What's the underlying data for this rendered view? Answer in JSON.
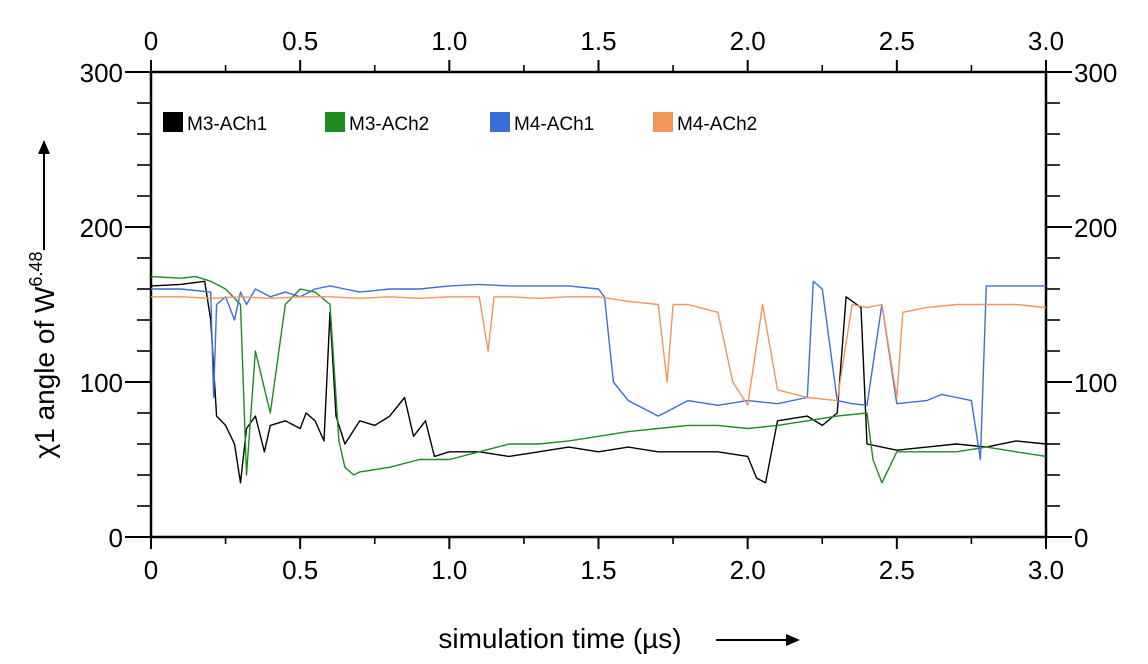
{
  "chart_data": {
    "type": "line",
    "xlabel": "simulation time (µs)",
    "ylabel": "χ1 angle of W",
    "ylabel_sup": "6.48",
    "xlim": [
      0,
      3.0
    ],
    "ylim": [
      0,
      300
    ],
    "x_ticks": [
      "0",
      "0.5",
      "1.0",
      "1.5",
      "2.0",
      "2.5",
      "3.0"
    ],
    "x_tick_values": [
      0,
      0.5,
      1.0,
      1.5,
      2.0,
      2.5,
      3.0
    ],
    "y_ticks": [
      "0",
      "100",
      "200",
      "300"
    ],
    "y_tick_values": [
      0,
      100,
      200,
      300
    ],
    "legend_position": "top-left",
    "series": [
      {
        "name": "M3-ACh1",
        "color": "#000000",
        "x": [
          0,
          0.1,
          0.18,
          0.2,
          0.22,
          0.25,
          0.28,
          0.3,
          0.32,
          0.35,
          0.38,
          0.4,
          0.45,
          0.5,
          0.52,
          0.55,
          0.58,
          0.6,
          0.62,
          0.65,
          0.7,
          0.75,
          0.8,
          0.85,
          0.88,
          0.92,
          0.95,
          1.0,
          1.1,
          1.2,
          1.3,
          1.4,
          1.5,
          1.6,
          1.7,
          1.8,
          1.9,
          2.0,
          2.03,
          2.06,
          2.1,
          2.2,
          2.25,
          2.3,
          2.33,
          2.38,
          2.4,
          2.45,
          2.5,
          2.6,
          2.7,
          2.8,
          2.9,
          3.0
        ],
        "y": [
          162,
          163,
          165,
          140,
          78,
          72,
          60,
          35,
          70,
          78,
          55,
          72,
          75,
          70,
          80,
          75,
          62,
          145,
          78,
          60,
          75,
          72,
          78,
          90,
          65,
          75,
          52,
          55,
          55,
          52,
          55,
          58,
          55,
          58,
          55,
          55,
          55,
          52,
          38,
          35,
          75,
          78,
          72,
          80,
          155,
          148,
          60,
          58,
          56,
          58,
          60,
          58,
          62,
          60
        ]
      },
      {
        "name": "M3-ACh2",
        "color": "#1e8c1e",
        "x": [
          0,
          0.1,
          0.15,
          0.2,
          0.25,
          0.3,
          0.32,
          0.35,
          0.4,
          0.45,
          0.5,
          0.55,
          0.6,
          0.63,
          0.65,
          0.68,
          0.7,
          0.8,
          0.9,
          1.0,
          1.1,
          1.2,
          1.3,
          1.4,
          1.5,
          1.6,
          1.7,
          1.8,
          1.9,
          2.0,
          2.1,
          2.2,
          2.3,
          2.4,
          2.42,
          2.45,
          2.5,
          2.6,
          2.7,
          2.8,
          2.9,
          3.0
        ],
        "y": [
          168,
          167,
          168,
          165,
          160,
          150,
          40,
          120,
          80,
          150,
          160,
          158,
          150,
          62,
          45,
          40,
          42,
          45,
          50,
          50,
          55,
          60,
          60,
          62,
          65,
          68,
          70,
          72,
          72,
          70,
          72,
          75,
          78,
          80,
          50,
          35,
          55,
          55,
          55,
          58,
          55,
          52
        ]
      },
      {
        "name": "M4-ACh1",
        "color": "#3a6fd8",
        "x": [
          0,
          0.1,
          0.2,
          0.21,
          0.22,
          0.25,
          0.28,
          0.3,
          0.32,
          0.35,
          0.4,
          0.45,
          0.5,
          0.55,
          0.6,
          0.65,
          0.7,
          0.8,
          0.9,
          1.0,
          1.1,
          1.2,
          1.3,
          1.4,
          1.5,
          1.52,
          1.55,
          1.6,
          1.7,
          1.8,
          1.9,
          2.0,
          2.1,
          2.2,
          2.22,
          2.25,
          2.3,
          2.35,
          2.4,
          2.45,
          2.5,
          2.6,
          2.65,
          2.7,
          2.75,
          2.78,
          2.8,
          2.9,
          3.0
        ],
        "y": [
          160,
          160,
          158,
          90,
          150,
          155,
          140,
          158,
          150,
          160,
          155,
          158,
          155,
          160,
          162,
          160,
          158,
          160,
          160,
          162,
          163,
          162,
          162,
          162,
          160,
          155,
          100,
          88,
          78,
          88,
          85,
          88,
          86,
          90,
          165,
          160,
          88,
          86,
          85,
          150,
          86,
          88,
          92,
          90,
          88,
          50,
          162,
          162,
          162
        ]
      },
      {
        "name": "M4-ACh2",
        "color": "#f2955a",
        "x": [
          0,
          0.1,
          0.2,
          0.3,
          0.4,
          0.5,
          0.6,
          0.7,
          0.8,
          0.9,
          1.0,
          1.1,
          1.13,
          1.15,
          1.2,
          1.3,
          1.4,
          1.5,
          1.6,
          1.7,
          1.73,
          1.75,
          1.8,
          1.9,
          1.95,
          2.0,
          2.05,
          2.1,
          2.2,
          2.3,
          2.35,
          2.4,
          2.45,
          2.5,
          2.52,
          2.6,
          2.7,
          2.8,
          2.9,
          3.0
        ],
        "y": [
          155,
          155,
          154,
          155,
          154,
          155,
          155,
          154,
          155,
          154,
          155,
          155,
          120,
          155,
          155,
          154,
          155,
          155,
          152,
          150,
          100,
          150,
          150,
          145,
          100,
          85,
          150,
          95,
          90,
          88,
          150,
          148,
          150,
          90,
          145,
          148,
          150,
          150,
          150,
          148
        ]
      }
    ]
  }
}
